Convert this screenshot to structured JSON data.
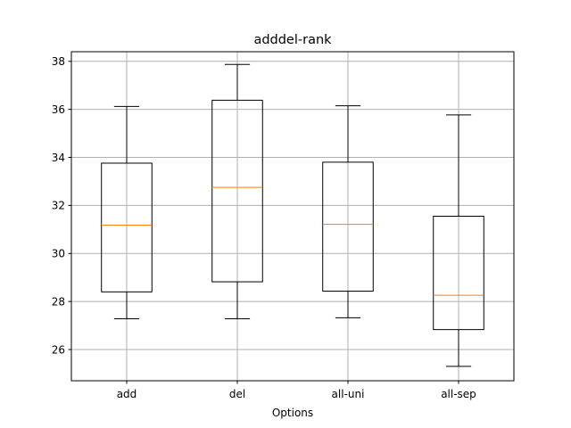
{
  "chart_data": {
    "type": "box",
    "title": "adddel-rank",
    "xlabel": "Options",
    "ylabel": "",
    "categories": [
      "add",
      "del",
      "all-uni",
      "all-sep"
    ],
    "boxes": [
      {
        "category": "add",
        "whisker_low": 27.28,
        "q1": 28.4,
        "median": 31.18,
        "q3": 33.76,
        "whisker_high": 36.12
      },
      {
        "category": "del",
        "whisker_low": 27.28,
        "q1": 28.82,
        "median": 32.75,
        "q3": 36.38,
        "whisker_high": 37.87
      },
      {
        "category": "all-uni",
        "whisker_low": 27.32,
        "q1": 28.43,
        "median": 31.21,
        "q3": 33.8,
        "whisker_high": 36.15
      },
      {
        "category": "all-sep",
        "whisker_low": 25.3,
        "q1": 26.83,
        "median": 28.26,
        "q3": 31.55,
        "whisker_high": 35.77
      }
    ],
    "yticks": [
      "26",
      "28",
      "30",
      "32",
      "34",
      "36",
      "38"
    ],
    "ylim": [
      24.7,
      38.4
    ],
    "grid": true,
    "colors": {
      "box": "#000000",
      "median": "#ff7f0e",
      "grid": "#b0b0b0"
    }
  }
}
